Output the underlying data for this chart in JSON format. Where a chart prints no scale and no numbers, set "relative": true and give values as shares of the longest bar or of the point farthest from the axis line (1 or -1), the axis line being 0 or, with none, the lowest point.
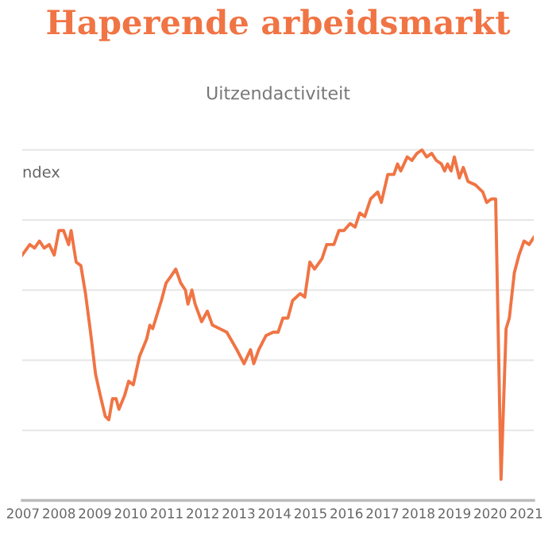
{
  "chart_data": {
    "type": "line",
    "title": "Haperende arbeidsmarkt",
    "subtitle": "Uitzendactiviteit",
    "annotations": [
      "ndex"
    ],
    "relative": true,
    "grid": "y",
    "legend": false,
    "xlim": [
      2006.98,
      2021.21
    ],
    "xticks": [
      2007,
      2008,
      2009,
      2010,
      2011,
      2012,
      2013,
      2014,
      2015,
      2016,
      2017,
      2018,
      2019,
      2020,
      2021
    ],
    "x": [
      2006.98,
      2007.19,
      2007.32,
      2007.46,
      2007.59,
      2007.73,
      2007.87,
      2008.0,
      2008.13,
      2008.27,
      2008.34,
      2008.48,
      2008.61,
      2008.74,
      2008.88,
      2009.02,
      2009.15,
      2009.29,
      2009.39,
      2009.49,
      2009.59,
      2009.67,
      2009.83,
      2009.94,
      2010.07,
      2010.24,
      2010.44,
      2010.53,
      2010.61,
      2010.85,
      2010.98,
      2011.12,
      2011.25,
      2011.39,
      2011.52,
      2011.59,
      2011.7,
      2011.79,
      2011.97,
      2012.13,
      2012.27,
      2012.47,
      2012.67,
      2012.95,
      2013.15,
      2013.33,
      2013.42,
      2013.56,
      2013.76,
      2013.96,
      2014.1,
      2014.23,
      2014.37,
      2014.5,
      2014.71,
      2014.84,
      2014.98,
      2015.11,
      2015.32,
      2015.45,
      2015.65,
      2015.79,
      2015.93,
      2016.1,
      2016.24,
      2016.37,
      2016.51,
      2016.67,
      2016.87,
      2016.97,
      2017.15,
      2017.32,
      2017.42,
      2017.51,
      2017.69,
      2017.82,
      2017.96,
      2018.1,
      2018.23,
      2018.37,
      2018.5,
      2018.64,
      2018.73,
      2018.81,
      2018.91,
      2019.0,
      2019.14,
      2019.25,
      2019.38,
      2019.59,
      2019.79,
      2019.9,
      2020.03,
      2020.15,
      2020.3,
      2020.44,
      2020.53,
      2020.67,
      2020.8,
      2020.94,
      2021.08,
      2021.21
    ],
    "series": [
      {
        "color": "#f07444",
        "values": [
          0.7,
          0.73,
          0.72,
          0.74,
          0.72,
          0.73,
          0.7,
          0.77,
          0.77,
          0.73,
          0.77,
          0.68,
          0.67,
          0.59,
          0.48,
          0.36,
          0.3,
          0.24,
          0.23,
          0.29,
          0.29,
          0.26,
          0.3,
          0.34,
          0.33,
          0.41,
          0.46,
          0.5,
          0.49,
          0.57,
          0.62,
          0.64,
          0.66,
          0.62,
          0.6,
          0.56,
          0.6,
          0.56,
          0.51,
          0.54,
          0.5,
          0.49,
          0.48,
          0.43,
          0.39,
          0.43,
          0.39,
          0.43,
          0.47,
          0.48,
          0.48,
          0.52,
          0.52,
          0.57,
          0.59,
          0.58,
          0.68,
          0.66,
          0.69,
          0.73,
          0.73,
          0.77,
          0.77,
          0.79,
          0.78,
          0.82,
          0.81,
          0.86,
          0.88,
          0.85,
          0.93,
          0.93,
          0.96,
          0.94,
          0.98,
          0.97,
          0.99,
          1.0,
          0.98,
          0.99,
          0.97,
          0.96,
          0.94,
          0.96,
          0.94,
          0.98,
          0.92,
          0.95,
          0.91,
          0.9,
          0.88,
          0.85,
          0.86,
          0.86,
          0.06,
          0.49,
          0.52,
          0.65,
          0.7,
          0.74,
          0.73,
          0.75
        ]
      }
    ]
  }
}
